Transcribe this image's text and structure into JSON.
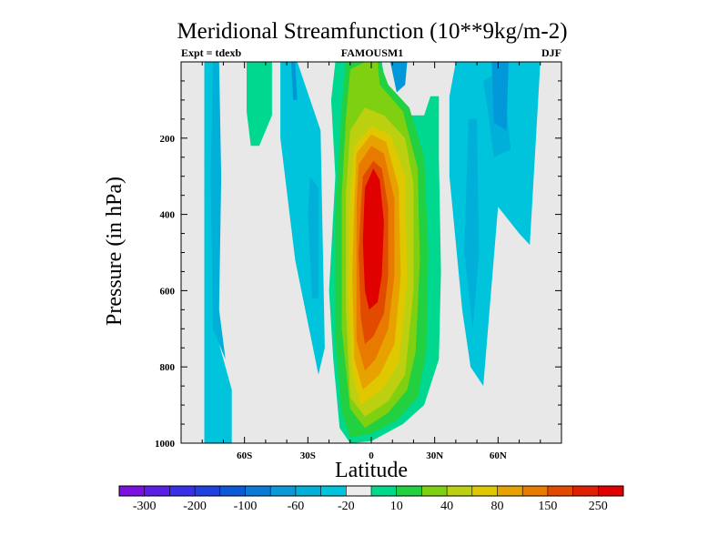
{
  "chart_data": {
    "type": "heatmap",
    "title": "Meridional Streamfunction (10**9kg/m-2)",
    "left_label": "Expt = tdexb",
    "center_label": "FAMOUSM1",
    "right_label": "DJF",
    "xlabel": "Latitude",
    "ylabel": "Pressure (in hPa)",
    "xlim": [
      -90,
      90
    ],
    "ylim": [
      1000,
      0
    ],
    "x_ticks": [
      {
        "value": -60,
        "label": "60S"
      },
      {
        "value": -30,
        "label": "30S"
      },
      {
        "value": 0,
        "label": "0"
      },
      {
        "value": 30,
        "label": "30N"
      },
      {
        "value": 60,
        "label": "60N"
      }
    ],
    "y_ticks": [
      {
        "value": 200,
        "label": "200"
      },
      {
        "value": 400,
        "label": "400"
      },
      {
        "value": 600,
        "label": "600"
      },
      {
        "value": 800,
        "label": "800"
      },
      {
        "value": 1000,
        "label": "1000"
      }
    ],
    "colorbar": {
      "colors": [
        "#7c10e0",
        "#5a1ee6",
        "#3a2fe8",
        "#2040e0",
        "#0a5ad8",
        "#0a7ad8",
        "#0a98d8",
        "#00b0d8",
        "#00c4dc",
        "#ececec",
        "#00d88a",
        "#22d040",
        "#7ed010",
        "#bcd010",
        "#e0c800",
        "#e8a200",
        "#e87a00",
        "#e24a00",
        "#e02000",
        "#e00000"
      ],
      "labels": [
        "-300",
        "-200",
        "-100",
        "-60",
        "-20",
        "10",
        "40",
        "80",
        "150",
        "250"
      ]
    },
    "series": [
      {
        "name": "band -10..10 (background)",
        "color": "#e8e8e8"
      },
      {
        "name": "light blue -20",
        "color": "#00c4dc",
        "polygons": [
          [
            [
              -79,
              0
            ],
            [
              -74,
              0
            ],
            [
              -73,
              200
            ],
            [
              -74,
              700
            ],
            [
              -66,
              860
            ],
            [
              -66,
              1000
            ],
            [
              -79,
              1000
            ]
          ],
          [
            [
              -43,
              0
            ],
            [
              -35,
              0
            ],
            [
              -24,
              180
            ],
            [
              -22,
              750
            ],
            [
              -25,
              820
            ],
            [
              -36,
              520
            ],
            [
              -43,
              200
            ]
          ],
          [
            [
              37,
              90
            ],
            [
              40,
              0
            ],
            [
              80,
              0
            ],
            [
              75,
              480
            ],
            [
              70,
              450
            ],
            [
              60,
              380
            ],
            [
              53,
              850
            ],
            [
              47,
              800
            ],
            [
              43,
              650
            ],
            [
              37,
              300
            ]
          ]
        ]
      },
      {
        "name": "medium blue -60",
        "color": "#00b0d8",
        "polygons": [
          [
            [
              -75,
              0
            ],
            [
              -72,
              0
            ],
            [
              -71,
              300
            ],
            [
              -72,
              650
            ],
            [
              -69,
              780
            ],
            [
              -75,
              700
            ],
            [
              -76,
              300
            ]
          ],
          [
            [
              -29,
              300
            ],
            [
              -25,
              330
            ],
            [
              -25,
              620
            ],
            [
              -28,
              620
            ],
            [
              -30,
              400
            ]
          ],
          [
            [
              46,
              150
            ],
            [
              50,
              150
            ],
            [
              51,
              500
            ],
            [
              48,
              700
            ],
            [
              44,
              500
            ]
          ],
          [
            [
              53,
              50
            ],
            [
              62,
              20
            ],
            [
              66,
              230
            ],
            [
              58,
              250
            ],
            [
              55,
              120
            ]
          ]
        ]
      },
      {
        "name": "darker blue -100",
        "color": "#0098d8",
        "polygons": [
          [
            [
              57,
              0
            ],
            [
              65,
              0
            ],
            [
              64,
              180
            ],
            [
              58,
              160
            ]
          ],
          [
            [
              -38,
              0
            ],
            [
              -36,
              0
            ],
            [
              -35,
              100
            ],
            [
              -37,
              100
            ]
          ],
          [
            [
              9,
              0
            ],
            [
              17,
              0
            ],
            [
              16,
              60
            ],
            [
              12,
              80
            ]
          ]
        ]
      },
      {
        "name": "teal +10 (south)",
        "color": "#00d890",
        "polygons": [
          [
            [
              -59,
              0
            ],
            [
              -47,
              0
            ],
            [
              -47,
              140
            ],
            [
              -53,
              220
            ],
            [
              -57,
              220
            ],
            [
              -59,
              130
            ]
          ]
        ]
      },
      {
        "name": "positive cell 10",
        "color": "#00d890",
        "polygons": [
          [
            [
              -17,
              0
            ],
            [
              -3,
              0
            ],
            [
              5,
              0
            ],
            [
              9,
              140
            ],
            [
              25,
              140
            ],
            [
              28,
              90
            ],
            [
              32,
              90
            ],
            [
              32,
              250
            ],
            [
              33,
              550
            ],
            [
              32,
              780
            ],
            [
              25,
              900
            ],
            [
              15,
              950
            ],
            [
              0,
              995
            ],
            [
              -10,
              1000
            ],
            [
              -15,
              960
            ],
            [
              -18,
              780
            ],
            [
              -20,
              600
            ],
            [
              -17,
              300
            ],
            [
              -19,
              100
            ]
          ]
        ]
      },
      {
        "name": "positive cell 40",
        "color": "#22d040",
        "polygons": [
          [
            [
              -12,
              0
            ],
            [
              -3,
              0
            ],
            [
              4,
              0
            ],
            [
              8,
              60
            ],
            [
              18,
              120
            ],
            [
              25,
              250
            ],
            [
              27,
              500
            ],
            [
              26,
              760
            ],
            [
              22,
              880
            ],
            [
              12,
              940
            ],
            [
              0,
              975
            ],
            [
              -10,
              985
            ],
            [
              -14,
              920
            ],
            [
              -17,
              720
            ],
            [
              -17,
              400
            ],
            [
              -14,
              120
            ]
          ]
        ]
      },
      {
        "name": "positive cell 80",
        "color": "#7ed010",
        "polygons": [
          [
            [
              -10,
              20
            ],
            [
              -3,
              0
            ],
            [
              3,
              0
            ],
            [
              4,
              60
            ],
            [
              15,
              130
            ],
            [
              22,
              280
            ],
            [
              23,
              520
            ],
            [
              21,
              760
            ],
            [
              17,
              860
            ],
            [
              8,
              920
            ],
            [
              -3,
              960
            ],
            [
              -10,
              910
            ],
            [
              -14,
              700
            ],
            [
              -14,
              350
            ],
            [
              -12,
              150
            ]
          ]
        ]
      },
      {
        "name": "positive cell 100",
        "color": "#bcd010",
        "polygons": [
          [
            [
              -10,
              180
            ],
            [
              -3,
              120
            ],
            [
              6,
              140
            ],
            [
              16,
              200
            ],
            [
              20,
              320
            ],
            [
              20,
              600
            ],
            [
              16,
              820
            ],
            [
              8,
              890
            ],
            [
              -3,
              930
            ],
            [
              -10,
              880
            ],
            [
              -12,
              650
            ],
            [
              -12,
              350
            ]
          ]
        ]
      },
      {
        "name": "positive cell 150",
        "color": "#e0c800",
        "polygons": [
          [
            [
              -8,
              220
            ],
            [
              0,
              170
            ],
            [
              9,
              190
            ],
            [
              16,
              300
            ],
            [
              17,
              580
            ],
            [
              13,
              790
            ],
            [
              5,
              860
            ],
            [
              -5,
              900
            ],
            [
              -9,
              820
            ],
            [
              -11,
              600
            ],
            [
              -10,
              350
            ]
          ]
        ]
      },
      {
        "name": "positive cell 200",
        "color": "#e8a200",
        "polygons": [
          [
            [
              -7,
              240
            ],
            [
              0,
              190
            ],
            [
              7,
              210
            ],
            [
              13,
              330
            ],
            [
              14,
              560
            ],
            [
              11,
              740
            ],
            [
              4,
              820
            ],
            [
              -4,
              860
            ],
            [
              -8,
              780
            ],
            [
              -9,
              560
            ],
            [
              -8,
              370
            ]
          ]
        ]
      },
      {
        "name": "positive cell 250",
        "color": "#e87a00",
        "polygons": [
          [
            [
              -6,
              270
            ],
            [
              0,
              220
            ],
            [
              6,
              240
            ],
            [
              11,
              360
            ],
            [
              11,
              560
            ],
            [
              8,
              700
            ],
            [
              2,
              780
            ],
            [
              -3,
              810
            ],
            [
              -7,
              730
            ],
            [
              -7,
              530
            ],
            [
              -7,
              380
            ]
          ]
        ]
      },
      {
        "name": "positive cell 300",
        "color": "#e24a00",
        "polygons": [
          [
            [
              -4,
              300
            ],
            [
              1,
              260
            ],
            [
              5,
              280
            ],
            [
              8,
              380
            ],
            [
              8,
              560
            ],
            [
              6,
              660
            ],
            [
              1,
              720
            ],
            [
              -3,
              740
            ],
            [
              -5,
              670
            ],
            [
              -6,
              500
            ],
            [
              -5,
              390
            ]
          ]
        ]
      },
      {
        "name": "positive cell max",
        "color": "#e00000",
        "polygons": [
          [
            [
              -3,
              330
            ],
            [
              1,
              280
            ],
            [
              4,
              310
            ],
            [
              6,
              420
            ],
            [
              5,
              560
            ],
            [
              3,
              630
            ],
            [
              -1,
              650
            ],
            [
              -3,
              600
            ],
            [
              -4,
              470
            ]
          ]
        ]
      }
    ]
  }
}
